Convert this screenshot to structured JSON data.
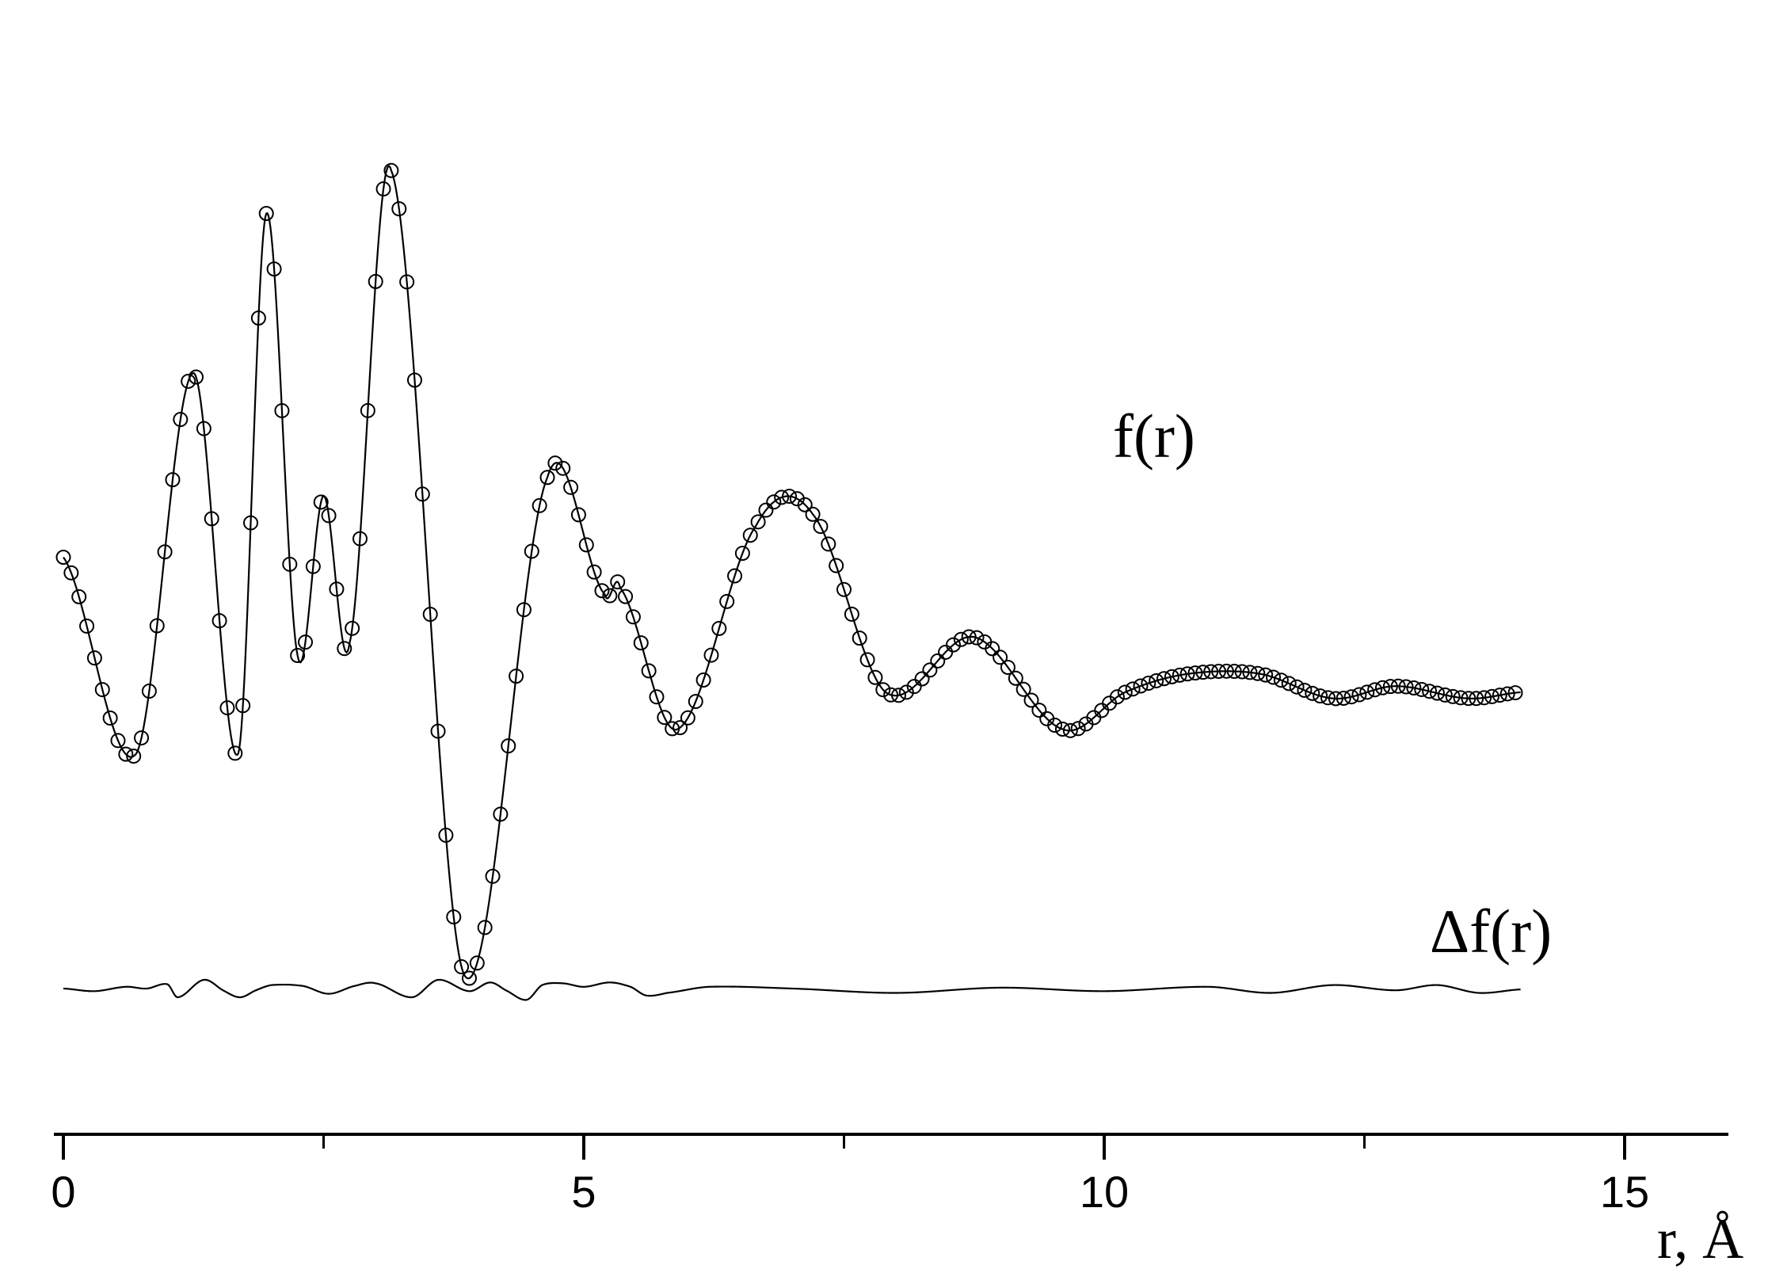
{
  "chart_data": {
    "type": "line",
    "title": "",
    "xlabel": "r, Å",
    "ylabel": "",
    "xlim": [
      -0.1,
      16.0
    ],
    "ylim": [
      -2.4,
      5.0
    ],
    "grid": false,
    "x_ticks": {
      "major": [
        0,
        5,
        10,
        15
      ],
      "labels": [
        "0",
        "5",
        "10",
        "15"
      ],
      "minor": [
        2.5,
        7.5,
        12.5
      ]
    },
    "series": [
      {
        "name": "f(r)",
        "style": "line-with-open-circle-markers",
        "color": "#000000",
        "x": [
          0.0,
          0.7,
          1.25,
          1.68,
          1.95,
          2.25,
          2.5,
          2.75,
          3.15,
          3.85,
          4.65,
          5.2,
          5.35,
          5.9,
          6.65,
          7.2,
          7.9,
          8.75,
          9.6,
          10.2,
          10.8,
          11.5,
          12.2,
          12.8,
          13.5,
          14.0
        ],
        "y": [
          1.1,
          -0.5,
          2.6,
          -0.5,
          3.9,
          0.3,
          1.6,
          0.4,
          4.25,
          -2.3,
          1.75,
          0.8,
          0.85,
          -0.3,
          1.35,
          1.45,
          0.0,
          0.45,
          -0.3,
          0.0,
          0.15,
          0.15,
          -0.05,
          0.05,
          -0.05,
          0.0
        ]
      },
      {
        "name": "Δf(r)",
        "style": "line",
        "color": "#000000",
        "x": [
          0.0,
          0.3,
          0.6,
          0.8,
          1.0,
          1.1,
          1.35,
          1.55,
          1.7,
          1.85,
          2.0,
          2.3,
          2.55,
          2.8,
          3.0,
          3.35,
          3.6,
          3.9,
          4.1,
          4.25,
          4.45,
          4.6,
          4.8,
          5.0,
          5.25,
          5.45,
          5.6,
          5.8,
          6.2,
          7.0,
          8.0,
          9.0,
          10.0,
          11.0,
          11.6,
          12.2,
          12.8,
          13.2,
          13.6,
          14.0
        ],
        "y": [
          0.0,
          -0.03,
          0.02,
          0.0,
          0.05,
          -0.1,
          0.1,
          -0.03,
          -0.1,
          -0.02,
          0.04,
          0.03,
          -0.06,
          0.03,
          0.06,
          -0.1,
          0.1,
          -0.03,
          0.07,
          -0.02,
          -0.13,
          0.04,
          0.06,
          0.02,
          0.07,
          0.02,
          -0.08,
          -0.05,
          0.02,
          0.0,
          -0.05,
          0.01,
          -0.03,
          0.02,
          -0.05,
          0.04,
          -0.02,
          0.04,
          -0.05,
          -0.01
        ]
      }
    ],
    "annotations": [
      "f(r)",
      "Δf(r)"
    ],
    "legend": "none"
  }
}
